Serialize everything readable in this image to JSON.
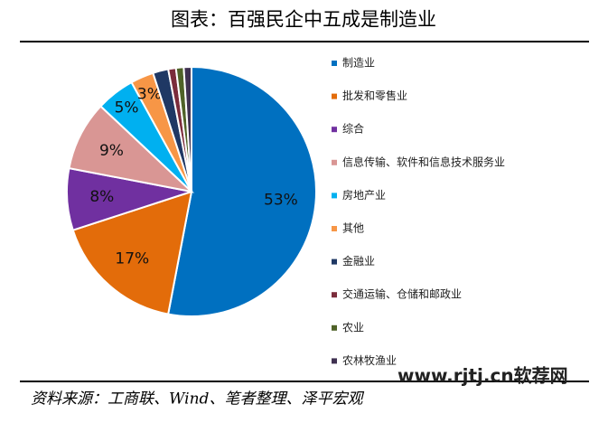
{
  "chart_data": {
    "type": "pie",
    "title": "图表：百强民企中五成是制造业",
    "categories": [
      "制造业",
      "批发和零售业",
      "综合",
      "信息传输、软件和信息技术服务业",
      "房地产业",
      "其他",
      "金融业",
      "交通运输、仓储和邮政业",
      "农业",
      "农林牧渔业"
    ],
    "values": [
      53,
      17,
      8,
      9,
      5,
      3,
      2,
      1,
      1,
      1
    ],
    "value_labels": [
      "53%",
      "17%",
      "8%",
      "9%",
      "5%",
      "3%",
      null,
      null,
      null,
      null
    ],
    "colors": [
      "#0070c0",
      "#e36c0a",
      "#7030a0",
      "#d99694",
      "#00b0f0",
      "#f79646",
      "#1f3864",
      "#7b2c3b",
      "#4f6228",
      "#3f3151"
    ],
    "source": "资料来源：工商联、Wind、笔者整理、泽平宏观",
    "watermark": "www.rjtj.cn软荐网"
  }
}
